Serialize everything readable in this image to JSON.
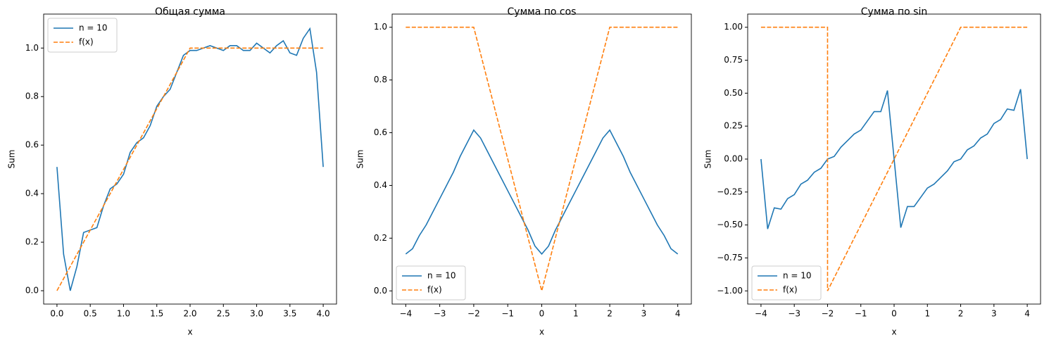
{
  "chart_data": [
    {
      "type": "line",
      "title": "Общая сумма",
      "xlabel": "x",
      "ylabel": "Sum",
      "legend": "upper left",
      "xlim": [
        -0.2,
        4.2
      ],
      "ylim": [
        -0.055,
        1.14
      ],
      "xticks": [
        {
          "value": 0,
          "label": "0.0"
        },
        {
          "value": 0.5,
          "label": "0.5"
        },
        {
          "value": 1,
          "label": "1.0"
        },
        {
          "value": 1.5,
          "label": "1.5"
        },
        {
          "value": 2,
          "label": "2.0"
        },
        {
          "value": 2.5,
          "label": "2.5"
        },
        {
          "value": 3,
          "label": "3.0"
        },
        {
          "value": 3.5,
          "label": "3.5"
        },
        {
          "value": 4,
          "label": "4.0"
        }
      ],
      "yticks": [
        {
          "value": 0,
          "label": "0.0"
        },
        {
          "value": 0.2,
          "label": "0.2"
        },
        {
          "value": 0.4,
          "label": "0.4"
        },
        {
          "value": 0.6,
          "label": "0.6"
        },
        {
          "value": 0.8,
          "label": "0.8"
        },
        {
          "value": 1,
          "label": "1.0"
        }
      ],
      "series": [
        {
          "name": "n = 10",
          "color": "#1f77b4",
          "dash": false,
          "x": [
            0,
            0.1,
            0.2,
            0.3,
            0.4,
            0.5,
            0.6,
            0.7,
            0.8,
            0.9,
            1,
            1.1,
            1.2,
            1.3,
            1.4,
            1.5,
            1.6,
            1.7,
            1.8,
            1.9,
            2,
            2.1,
            2.2,
            2.3,
            2.4,
            2.5,
            2.6,
            2.7,
            2.8,
            2.9,
            3,
            3.1,
            3.2,
            3.3,
            3.4,
            3.5,
            3.6,
            3.7,
            3.8,
            3.9,
            4
          ],
          "values": [
            0.51,
            0.15,
            0.0,
            0.1,
            0.24,
            0.25,
            0.26,
            0.35,
            0.42,
            0.44,
            0.48,
            0.57,
            0.61,
            0.63,
            0.68,
            0.76,
            0.8,
            0.83,
            0.9,
            0.97,
            0.99,
            0.99,
            1.0,
            1.01,
            1.0,
            0.99,
            1.01,
            1.01,
            0.99,
            0.99,
            1.02,
            1.0,
            0.98,
            1.01,
            1.03,
            0.98,
            0.97,
            1.04,
            1.08,
            0.9,
            0.51
          ]
        },
        {
          "name": "f(x)",
          "color": "#ff7f0e",
          "dash": true,
          "x": [
            0,
            2,
            4
          ],
          "values": [
            0,
            1,
            1
          ]
        }
      ]
    },
    {
      "type": "line",
      "title": "Сумма по cos",
      "xlabel": "x",
      "ylabel": "Sum",
      "legend": "lower left",
      "xlim": [
        -4.4,
        4.4
      ],
      "ylim": [
        -0.05,
        1.05
      ],
      "xticks": [
        {
          "value": -4,
          "label": "−4"
        },
        {
          "value": -3,
          "label": "−3"
        },
        {
          "value": -2,
          "label": "−2"
        },
        {
          "value": -1,
          "label": "−1"
        },
        0,
        1,
        2,
        3,
        4
      ],
      "yticks": [
        {
          "value": 0,
          "label": "0.0"
        },
        {
          "value": 0.2,
          "label": "0.2"
        },
        {
          "value": 0.4,
          "label": "0.4"
        },
        {
          "value": 0.6,
          "label": "0.6"
        },
        {
          "value": 0.8,
          "label": "0.8"
        },
        {
          "value": 1,
          "label": "1.0"
        }
      ],
      "series": [
        {
          "name": "n = 10",
          "color": "#1f77b4",
          "dash": false,
          "x": [
            -4,
            -3.8,
            -3.6,
            -3.4,
            -3.2,
            -3,
            -2.8,
            -2.6,
            -2.4,
            -2.2,
            -2,
            -1.8,
            -1.6,
            -1.4,
            -1.2,
            -1,
            -0.8,
            -0.6,
            -0.4,
            -0.2,
            0,
            0.2,
            0.4,
            0.6,
            0.8,
            1,
            1.2,
            1.4,
            1.6,
            1.8,
            2,
            2.2,
            2.4,
            2.6,
            2.8,
            3,
            3.2,
            3.4,
            3.6,
            3.8,
            4
          ],
          "values": [
            0.14,
            0.16,
            0.21,
            0.25,
            0.3,
            0.35,
            0.4,
            0.45,
            0.51,
            0.56,
            0.61,
            0.58,
            0.53,
            0.48,
            0.43,
            0.38,
            0.33,
            0.28,
            0.23,
            0.17,
            0.14,
            0.17,
            0.23,
            0.28,
            0.33,
            0.38,
            0.43,
            0.48,
            0.53,
            0.58,
            0.61,
            0.56,
            0.51,
            0.45,
            0.4,
            0.35,
            0.3,
            0.25,
            0.21,
            0.16,
            0.14
          ]
        },
        {
          "name": "f(x)",
          "color": "#ff7f0e",
          "dash": true,
          "x": [
            -4,
            -2,
            0,
            2,
            4
          ],
          "values": [
            1,
            1,
            0,
            1,
            1
          ]
        }
      ]
    },
    {
      "type": "line",
      "title": "Сумма по sin",
      "xlabel": "x",
      "ylabel": "Sum",
      "legend": "lower left",
      "xlim": [
        -4.4,
        4.4
      ],
      "ylim": [
        -1.1,
        1.1
      ],
      "xticks": [
        {
          "value": -4,
          "label": "−4"
        },
        {
          "value": -3,
          "label": "−3"
        },
        {
          "value": -2,
          "label": "−2"
        },
        {
          "value": -1,
          "label": "−1"
        },
        0,
        1,
        2,
        3,
        4
      ],
      "yticks": [
        {
          "value": -1,
          "label": "−1.00"
        },
        {
          "value": -0.75,
          "label": "−0.75"
        },
        {
          "value": -0.5,
          "label": "−0.50"
        },
        {
          "value": -0.25,
          "label": "−0.25"
        },
        {
          "value": 0,
          "label": "0.00"
        },
        {
          "value": 0.25,
          "label": "0.25"
        },
        {
          "value": 0.5,
          "label": "0.50"
        },
        {
          "value": 0.75,
          "label": "0.75"
        },
        {
          "value": 1,
          "label": "1.00"
        }
      ],
      "series": [
        {
          "name": "n = 10",
          "color": "#1f77b4",
          "dash": false,
          "x": [
            -4,
            -3.8,
            -3.6,
            -3.4,
            -3.2,
            -3,
            -2.8,
            -2.6,
            -2.4,
            -2.2,
            -2,
            -1.8,
            -1.6,
            -1.4,
            -1.2,
            -1,
            -0.8,
            -0.6,
            -0.4,
            -0.2,
            0,
            0.2,
            0.4,
            0.6,
            0.8,
            1,
            1.2,
            1.4,
            1.6,
            1.8,
            2,
            2.2,
            2.4,
            2.6,
            2.8,
            3,
            3.2,
            3.4,
            3.6,
            3.8,
            4
          ],
          "values": [
            0,
            -0.53,
            -0.37,
            -0.38,
            -0.3,
            -0.27,
            -0.19,
            -0.16,
            -0.1,
            -0.07,
            0,
            0.02,
            0.09,
            0.14,
            0.19,
            0.22,
            0.29,
            0.36,
            0.36,
            0.52,
            0,
            -0.52,
            -0.36,
            -0.36,
            -0.29,
            -0.22,
            -0.19,
            -0.14,
            -0.09,
            -0.02,
            0,
            0.07,
            0.1,
            0.16,
            0.19,
            0.27,
            0.3,
            0.38,
            0.37,
            0.53,
            0
          ]
        },
        {
          "name": "f(x)",
          "color": "#ff7f0e",
          "dash": true,
          "x": [
            -4,
            -2,
            -2,
            2,
            4
          ],
          "values": [
            1,
            1,
            -1,
            1,
            1
          ]
        }
      ]
    }
  ]
}
